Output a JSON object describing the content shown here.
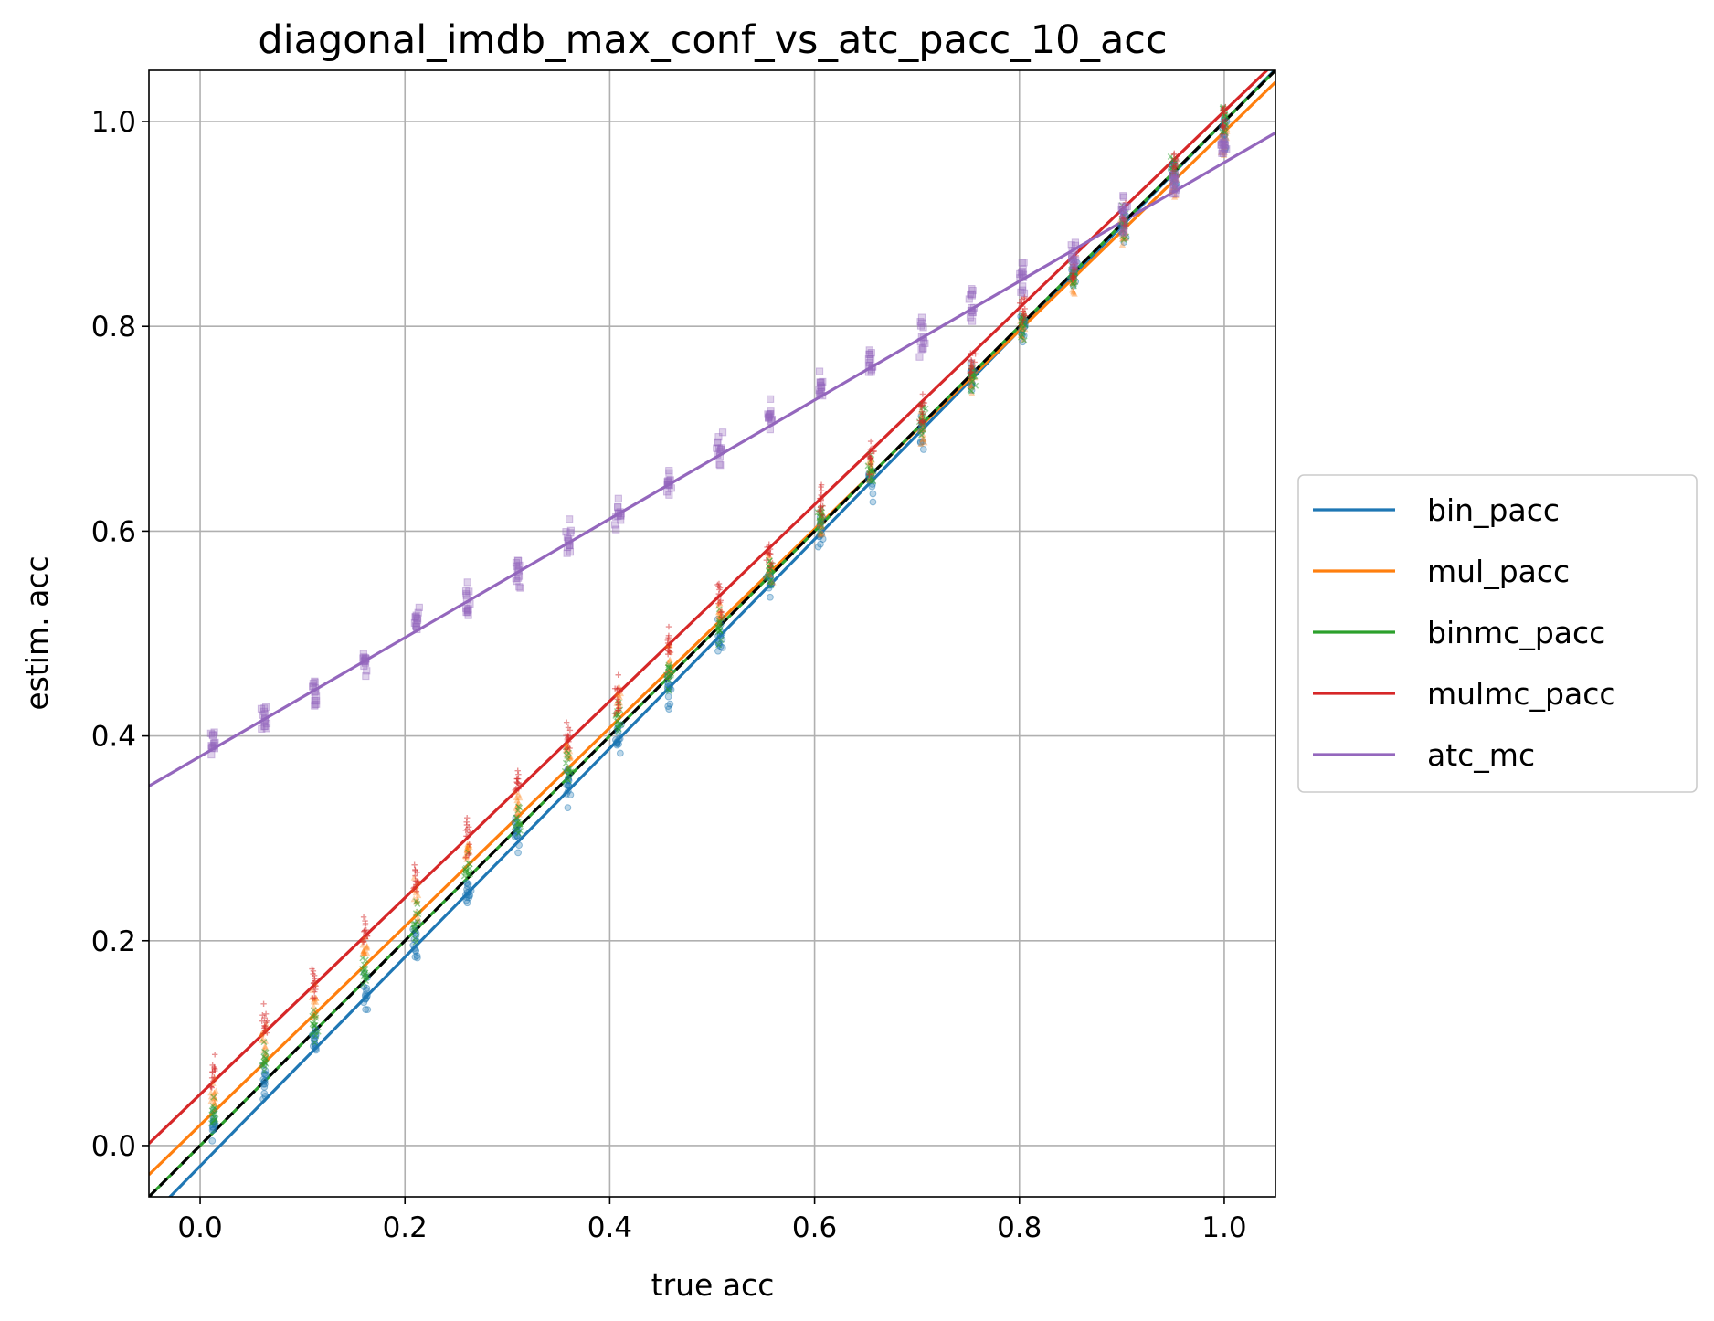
{
  "chart_data": {
    "type": "scatter",
    "title": "diagonal_imdb_max_conf_vs_atc_pacc_10_acc",
    "xlabel": "true acc",
    "ylabel": "estim. acc",
    "xlim": [
      -0.05,
      1.05
    ],
    "ylim": [
      -0.05,
      1.05
    ],
    "x_ticks": [
      0.0,
      0.2,
      0.4,
      0.6,
      0.8,
      1.0
    ],
    "y_ticks": [
      0.0,
      0.2,
      0.4,
      0.6,
      0.8,
      1.0
    ],
    "x_tick_labels": [
      "0.0",
      "0.2",
      "0.4",
      "0.6",
      "0.8",
      "1.0"
    ],
    "y_tick_labels": [
      "0.0",
      "0.2",
      "0.4",
      "0.6",
      "0.8",
      "1.0"
    ],
    "grid": true,
    "legend_position": "right, outside",
    "reference_line": {
      "style": "dashed",
      "color": "#000000",
      "slope": 1,
      "intercept": 0
    },
    "x": [
      0.013,
      0.063,
      0.112,
      0.161,
      0.211,
      0.261,
      0.31,
      0.359,
      0.408,
      0.458,
      0.507,
      0.556,
      0.606,
      0.655,
      0.705,
      0.754,
      0.803,
      0.853,
      0.902,
      0.951,
      1.0
    ],
    "series": [
      {
        "name": "bin_pacc",
        "color": "#1f77b4",
        "marker": "circle",
        "fit": {
          "slope": 1.02,
          "intercept": -0.02
        },
        "values": [
          0.02,
          0.06,
          0.1,
          0.15,
          0.2,
          0.25,
          0.3,
          0.35,
          0.4,
          0.45,
          0.5,
          0.55,
          0.6,
          0.65,
          0.7,
          0.75,
          0.8,
          0.85,
          0.9,
          0.95,
          0.99
        ]
      },
      {
        "name": "mul_pacc",
        "color": "#ff7f0e",
        "marker": "triangle",
        "fit": {
          "slope": 0.97,
          "intercept": 0.02
        },
        "values": [
          0.05,
          0.1,
          0.14,
          0.19,
          0.24,
          0.29,
          0.33,
          0.38,
          0.43,
          0.47,
          0.52,
          0.56,
          0.61,
          0.66,
          0.7,
          0.75,
          0.8,
          0.84,
          0.89,
          0.94,
          0.98
        ]
      },
      {
        "name": "binmc_pacc",
        "color": "#2ca02c",
        "marker": "x",
        "fit": {
          "slope": 1.0,
          "intercept": 0.0
        },
        "values": [
          0.03,
          0.08,
          0.12,
          0.17,
          0.22,
          0.27,
          0.32,
          0.37,
          0.42,
          0.46,
          0.51,
          0.56,
          0.61,
          0.66,
          0.71,
          0.75,
          0.8,
          0.85,
          0.9,
          0.95,
          1.0
        ]
      },
      {
        "name": "mulmc_pacc",
        "color": "#d62728",
        "marker": "plus",
        "fit": {
          "slope": 0.96,
          "intercept": 0.05
        },
        "values": [
          0.07,
          0.12,
          0.16,
          0.21,
          0.26,
          0.3,
          0.35,
          0.4,
          0.44,
          0.49,
          0.53,
          0.58,
          0.63,
          0.67,
          0.72,
          0.77,
          0.82,
          0.86,
          0.91,
          0.96,
          1.0
        ]
      },
      {
        "name": "atc_mc",
        "color": "#9467bd",
        "marker": "square",
        "fit": {
          "slope": 0.58,
          "intercept": 0.38
        },
        "values": [
          0.39,
          0.42,
          0.44,
          0.47,
          0.51,
          0.53,
          0.56,
          0.59,
          0.62,
          0.65,
          0.68,
          0.71,
          0.74,
          0.76,
          0.79,
          0.82,
          0.85,
          0.87,
          0.91,
          0.94,
          0.97
        ]
      }
    ]
  }
}
